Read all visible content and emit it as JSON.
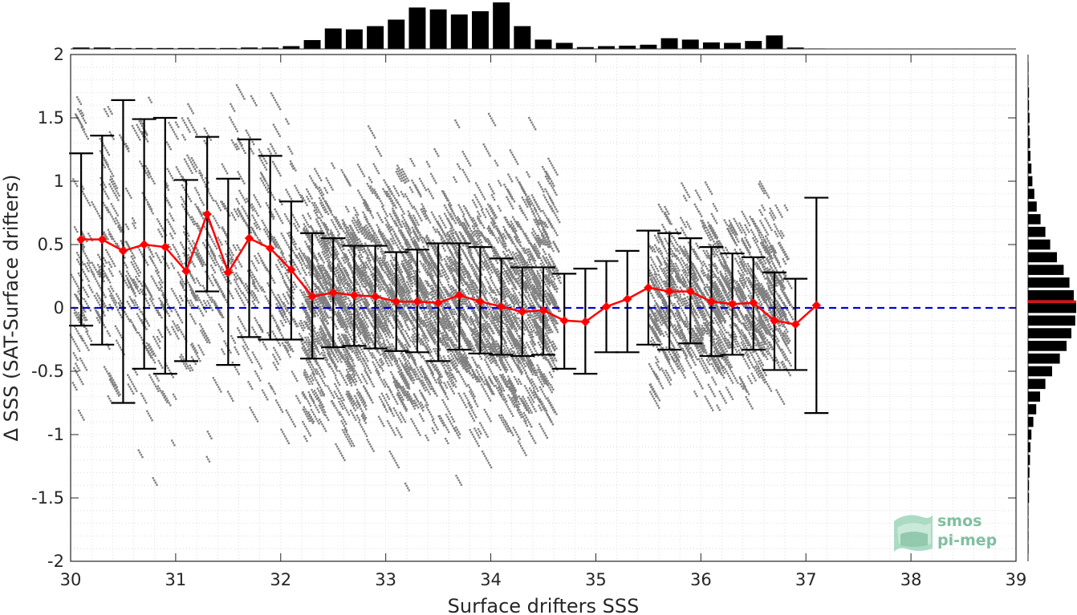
{
  "chart_data": {
    "type": "scatter",
    "title": "",
    "xlabel": "Surface drifters SSS",
    "ylabel": "Δ SSS (SAT-Surface drifters)",
    "xlim": [
      30,
      39
    ],
    "ylim": [
      -2,
      2
    ],
    "xticks": [
      "30",
      "31",
      "32",
      "33",
      "34",
      "35",
      "36",
      "37",
      "38",
      "39"
    ],
    "yticks": [
      "2",
      "1.5",
      "1",
      "0.5",
      "0",
      "-0.5",
      "-1",
      "-1.5",
      "-2"
    ],
    "grid": true,
    "reference_line": {
      "y": 0,
      "color": "#0000dd",
      "style": "dashed"
    },
    "binned_stats": {
      "name": "",
      "color": "#ff0000",
      "x": [
        30.1,
        30.3,
        30.5,
        30.7,
        30.9,
        31.1,
        31.3,
        31.5,
        31.7,
        31.9,
        32.1,
        32.3,
        32.5,
        32.7,
        32.9,
        33.1,
        33.3,
        33.5,
        33.7,
        33.9,
        34.1,
        34.3,
        34.5,
        34.7,
        34.9,
        35.1,
        35.3,
        35.5,
        35.7,
        35.9,
        36.1,
        36.3,
        36.5,
        36.7,
        36.9,
        37.1
      ],
      "mean": [
        0.54,
        0.54,
        0.45,
        0.5,
        0.48,
        0.29,
        0.74,
        0.28,
        0.55,
        0.47,
        0.3,
        0.09,
        0.12,
        0.1,
        0.09,
        0.05,
        0.05,
        0.04,
        0.1,
        0.05,
        0.01,
        -0.03,
        -0.02,
        -0.1,
        -0.11,
        0.01,
        0.07,
        0.16,
        0.13,
        0.13,
        0.05,
        0.03,
        0.04,
        -0.1,
        -0.13,
        0.02
      ],
      "upper": [
        1.22,
        1.36,
        1.64,
        1.49,
        1.5,
        1.01,
        1.35,
        1.02,
        1.33,
        1.2,
        0.84,
        0.59,
        0.55,
        0.49,
        0.49,
        0.44,
        0.46,
        0.51,
        0.51,
        0.48,
        0.39,
        0.32,
        0.32,
        0.27,
        0.31,
        0.37,
        0.45,
        0.61,
        0.59,
        0.55,
        0.48,
        0.43,
        0.4,
        0.28,
        0.23,
        0.87
      ],
      "lower": [
        -0.14,
        -0.29,
        -0.75,
        -0.48,
        -0.52,
        -0.42,
        0.13,
        -0.45,
        -0.23,
        -0.25,
        -0.25,
        -0.4,
        -0.31,
        -0.3,
        -0.32,
        -0.34,
        -0.35,
        -0.42,
        -0.33,
        -0.36,
        -0.37,
        -0.38,
        -0.37,
        -0.48,
        -0.52,
        -0.35,
        -0.35,
        -0.29,
        -0.33,
        -0.28,
        -0.38,
        -0.37,
        -0.33,
        -0.49,
        -0.49,
        -0.83
      ]
    },
    "scatter_color": "#808080",
    "scatter_clusters": [
      {
        "x_range": [
          32.2,
          34.6
        ],
        "y_center": 0.1,
        "y_spread": 0.85,
        "density": "high"
      },
      {
        "x_range": [
          35.5,
          36.8
        ],
        "y_center": 0.1,
        "y_spread": 0.6,
        "density": "medium"
      },
      {
        "x_range": [
          30.0,
          32.2
        ],
        "y_center": 0.4,
        "y_spread": 1.1,
        "density": "low"
      }
    ],
    "top_histogram": {
      "bin_centers": [
        30.1,
        30.3,
        30.5,
        30.7,
        30.9,
        31.1,
        31.3,
        31.5,
        31.7,
        31.9,
        32.1,
        32.3,
        32.5,
        32.7,
        32.9,
        33.1,
        33.3,
        33.5,
        33.7,
        33.9,
        34.1,
        34.3,
        34.5,
        34.7,
        34.9,
        35.1,
        35.3,
        35.5,
        35.7,
        35.9,
        36.1,
        36.3,
        36.5,
        36.7,
        36.9,
        37.1
      ],
      "counts": [
        0.03,
        0.03,
        0.02,
        0.02,
        0.02,
        0.02,
        0.02,
        0.02,
        0.03,
        0.03,
        0.06,
        0.19,
        0.44,
        0.42,
        0.49,
        0.63,
        0.89,
        0.85,
        0.74,
        0.81,
        1.0,
        0.49,
        0.2,
        0.13,
        0.04,
        0.06,
        0.07,
        0.09,
        0.23,
        0.2,
        0.14,
        0.13,
        0.17,
        0.29,
        0.03,
        0.01
      ]
    },
    "right_histogram": {
      "bin_centers": [
        1.9,
        1.8,
        1.7,
        1.6,
        1.5,
        1.4,
        1.3,
        1.2,
        1.1,
        1.0,
        0.9,
        0.8,
        0.7,
        0.6,
        0.5,
        0.4,
        0.3,
        0.2,
        0.1,
        0.0,
        -0.1,
        -0.2,
        -0.3,
        -0.4,
        -0.5,
        -0.6,
        -0.7,
        -0.8,
        -0.9,
        -1.0,
        -1.1,
        -1.2,
        -1.3,
        -1.4,
        -1.5,
        -1.6,
        -1.7,
        -1.8,
        -1.9
      ],
      "counts": [
        0.01,
        0.01,
        0.02,
        0.02,
        0.03,
        0.03,
        0.04,
        0.05,
        0.07,
        0.09,
        0.13,
        0.18,
        0.26,
        0.36,
        0.46,
        0.6,
        0.74,
        0.86,
        0.95,
        1.0,
        0.98,
        0.9,
        0.8,
        0.66,
        0.5,
        0.36,
        0.25,
        0.17,
        0.11,
        0.07,
        0.05,
        0.04,
        0.03,
        0.02,
        0.02,
        0.01,
        0.01,
        0.01,
        0.01
      ],
      "mean_line": 0.05,
      "mean_line_color": "#ff0000"
    }
  },
  "logo": {
    "line1": "smos",
    "line2": "pi-mep",
    "color": "#7fbf9f"
  }
}
